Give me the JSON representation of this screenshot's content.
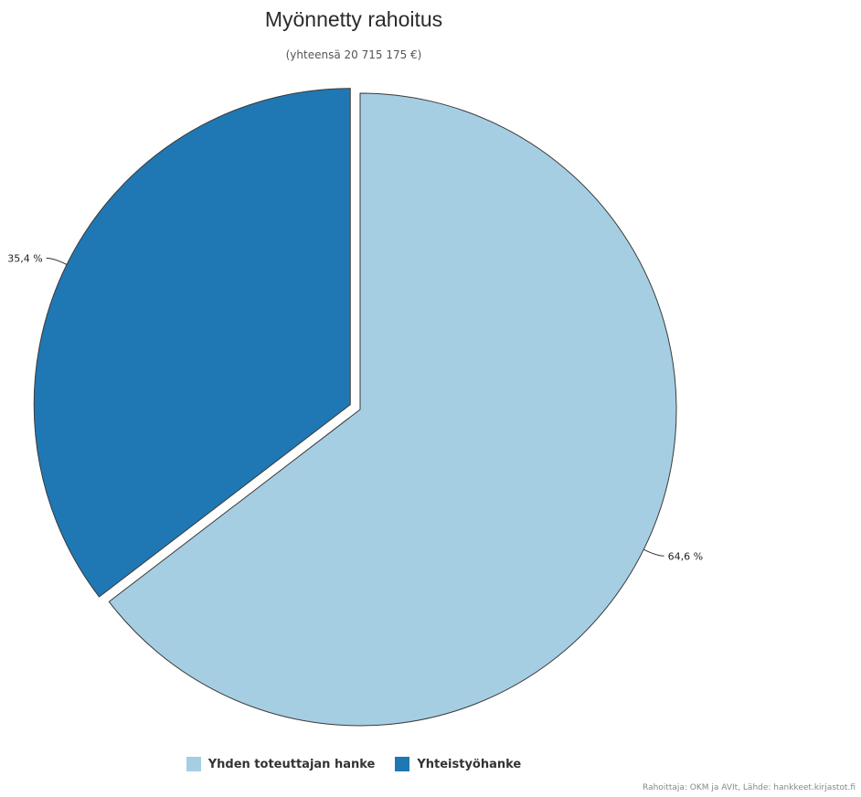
{
  "chart_data": {
    "type": "pie",
    "title": "Myönnetty rahoitus",
    "subtitle": "(yhteensä 20 715 175 €)",
    "slices": [
      {
        "name": "Yhden toteuttajan hanke",
        "value": 64.6,
        "label": "64,6 %",
        "color": "#a6cee3"
      },
      {
        "name": "Yhteistyöhanke",
        "value": 35.4,
        "label": "35,4 %",
        "color": "#1f78b4",
        "exploded": true
      }
    ],
    "legend_placement": "bottom"
  },
  "credits": "Rahoittaja: OKM ja AVIt, Lähde: hankkeet.kirjastot.fi"
}
